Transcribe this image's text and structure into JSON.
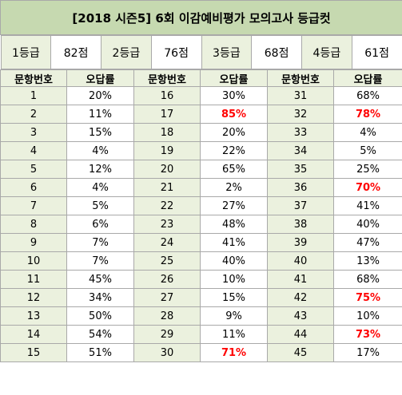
{
  "title": "[2018 시즌5] 6회 이감예비평가 모의고사 등급컷",
  "grades": [
    {
      "label": "1등급",
      "score": "82점"
    },
    {
      "label": "2등급",
      "score": "76점"
    },
    {
      "label": "3등급",
      "score": "68점"
    },
    {
      "label": "4등급",
      "score": "61점"
    }
  ],
  "headers": {
    "num": "문항번호",
    "rate": "오답률"
  },
  "accent_color": "#ff0000",
  "rows": [
    [
      {
        "n": "1",
        "r": "20%",
        "hot": false
      },
      {
        "n": "16",
        "r": "30%",
        "hot": false
      },
      {
        "n": "31",
        "r": "68%",
        "hot": false
      }
    ],
    [
      {
        "n": "2",
        "r": "11%",
        "hot": false
      },
      {
        "n": "17",
        "r": "85%",
        "hot": true
      },
      {
        "n": "32",
        "r": "78%",
        "hot": true
      }
    ],
    [
      {
        "n": "3",
        "r": "15%",
        "hot": false
      },
      {
        "n": "18",
        "r": "20%",
        "hot": false
      },
      {
        "n": "33",
        "r": "4%",
        "hot": false
      }
    ],
    [
      {
        "n": "4",
        "r": "4%",
        "hot": false
      },
      {
        "n": "19",
        "r": "22%",
        "hot": false
      },
      {
        "n": "34",
        "r": "5%",
        "hot": false
      }
    ],
    [
      {
        "n": "5",
        "r": "12%",
        "hot": false
      },
      {
        "n": "20",
        "r": "65%",
        "hot": false
      },
      {
        "n": "35",
        "r": "25%",
        "hot": false
      }
    ],
    [
      {
        "n": "6",
        "r": "4%",
        "hot": false
      },
      {
        "n": "21",
        "r": "2%",
        "hot": false
      },
      {
        "n": "36",
        "r": "70%",
        "hot": true
      }
    ],
    [
      {
        "n": "7",
        "r": "5%",
        "hot": false
      },
      {
        "n": "22",
        "r": "27%",
        "hot": false
      },
      {
        "n": "37",
        "r": "41%",
        "hot": false
      }
    ],
    [
      {
        "n": "8",
        "r": "6%",
        "hot": false
      },
      {
        "n": "23",
        "r": "48%",
        "hot": false
      },
      {
        "n": "38",
        "r": "40%",
        "hot": false
      }
    ],
    [
      {
        "n": "9",
        "r": "7%",
        "hot": false
      },
      {
        "n": "24",
        "r": "41%",
        "hot": false
      },
      {
        "n": "39",
        "r": "47%",
        "hot": false
      }
    ],
    [
      {
        "n": "10",
        "r": "7%",
        "hot": false
      },
      {
        "n": "25",
        "r": "40%",
        "hot": false
      },
      {
        "n": "40",
        "r": "13%",
        "hot": false
      }
    ],
    [
      {
        "n": "11",
        "r": "45%",
        "hot": false
      },
      {
        "n": "26",
        "r": "10%",
        "hot": false
      },
      {
        "n": "41",
        "r": "68%",
        "hot": false
      }
    ],
    [
      {
        "n": "12",
        "r": "34%",
        "hot": false
      },
      {
        "n": "27",
        "r": "15%",
        "hot": false
      },
      {
        "n": "42",
        "r": "75%",
        "hot": true
      }
    ],
    [
      {
        "n": "13",
        "r": "50%",
        "hot": false
      },
      {
        "n": "28",
        "r": "9%",
        "hot": false
      },
      {
        "n": "43",
        "r": "10%",
        "hot": false
      }
    ],
    [
      {
        "n": "14",
        "r": "54%",
        "hot": false
      },
      {
        "n": "29",
        "r": "11%",
        "hot": false
      },
      {
        "n": "44",
        "r": "73%",
        "hot": true
      }
    ],
    [
      {
        "n": "15",
        "r": "51%",
        "hot": false
      },
      {
        "n": "30",
        "r": "71%",
        "hot": true
      },
      {
        "n": "45",
        "r": "17%",
        "hot": false
      }
    ]
  ]
}
